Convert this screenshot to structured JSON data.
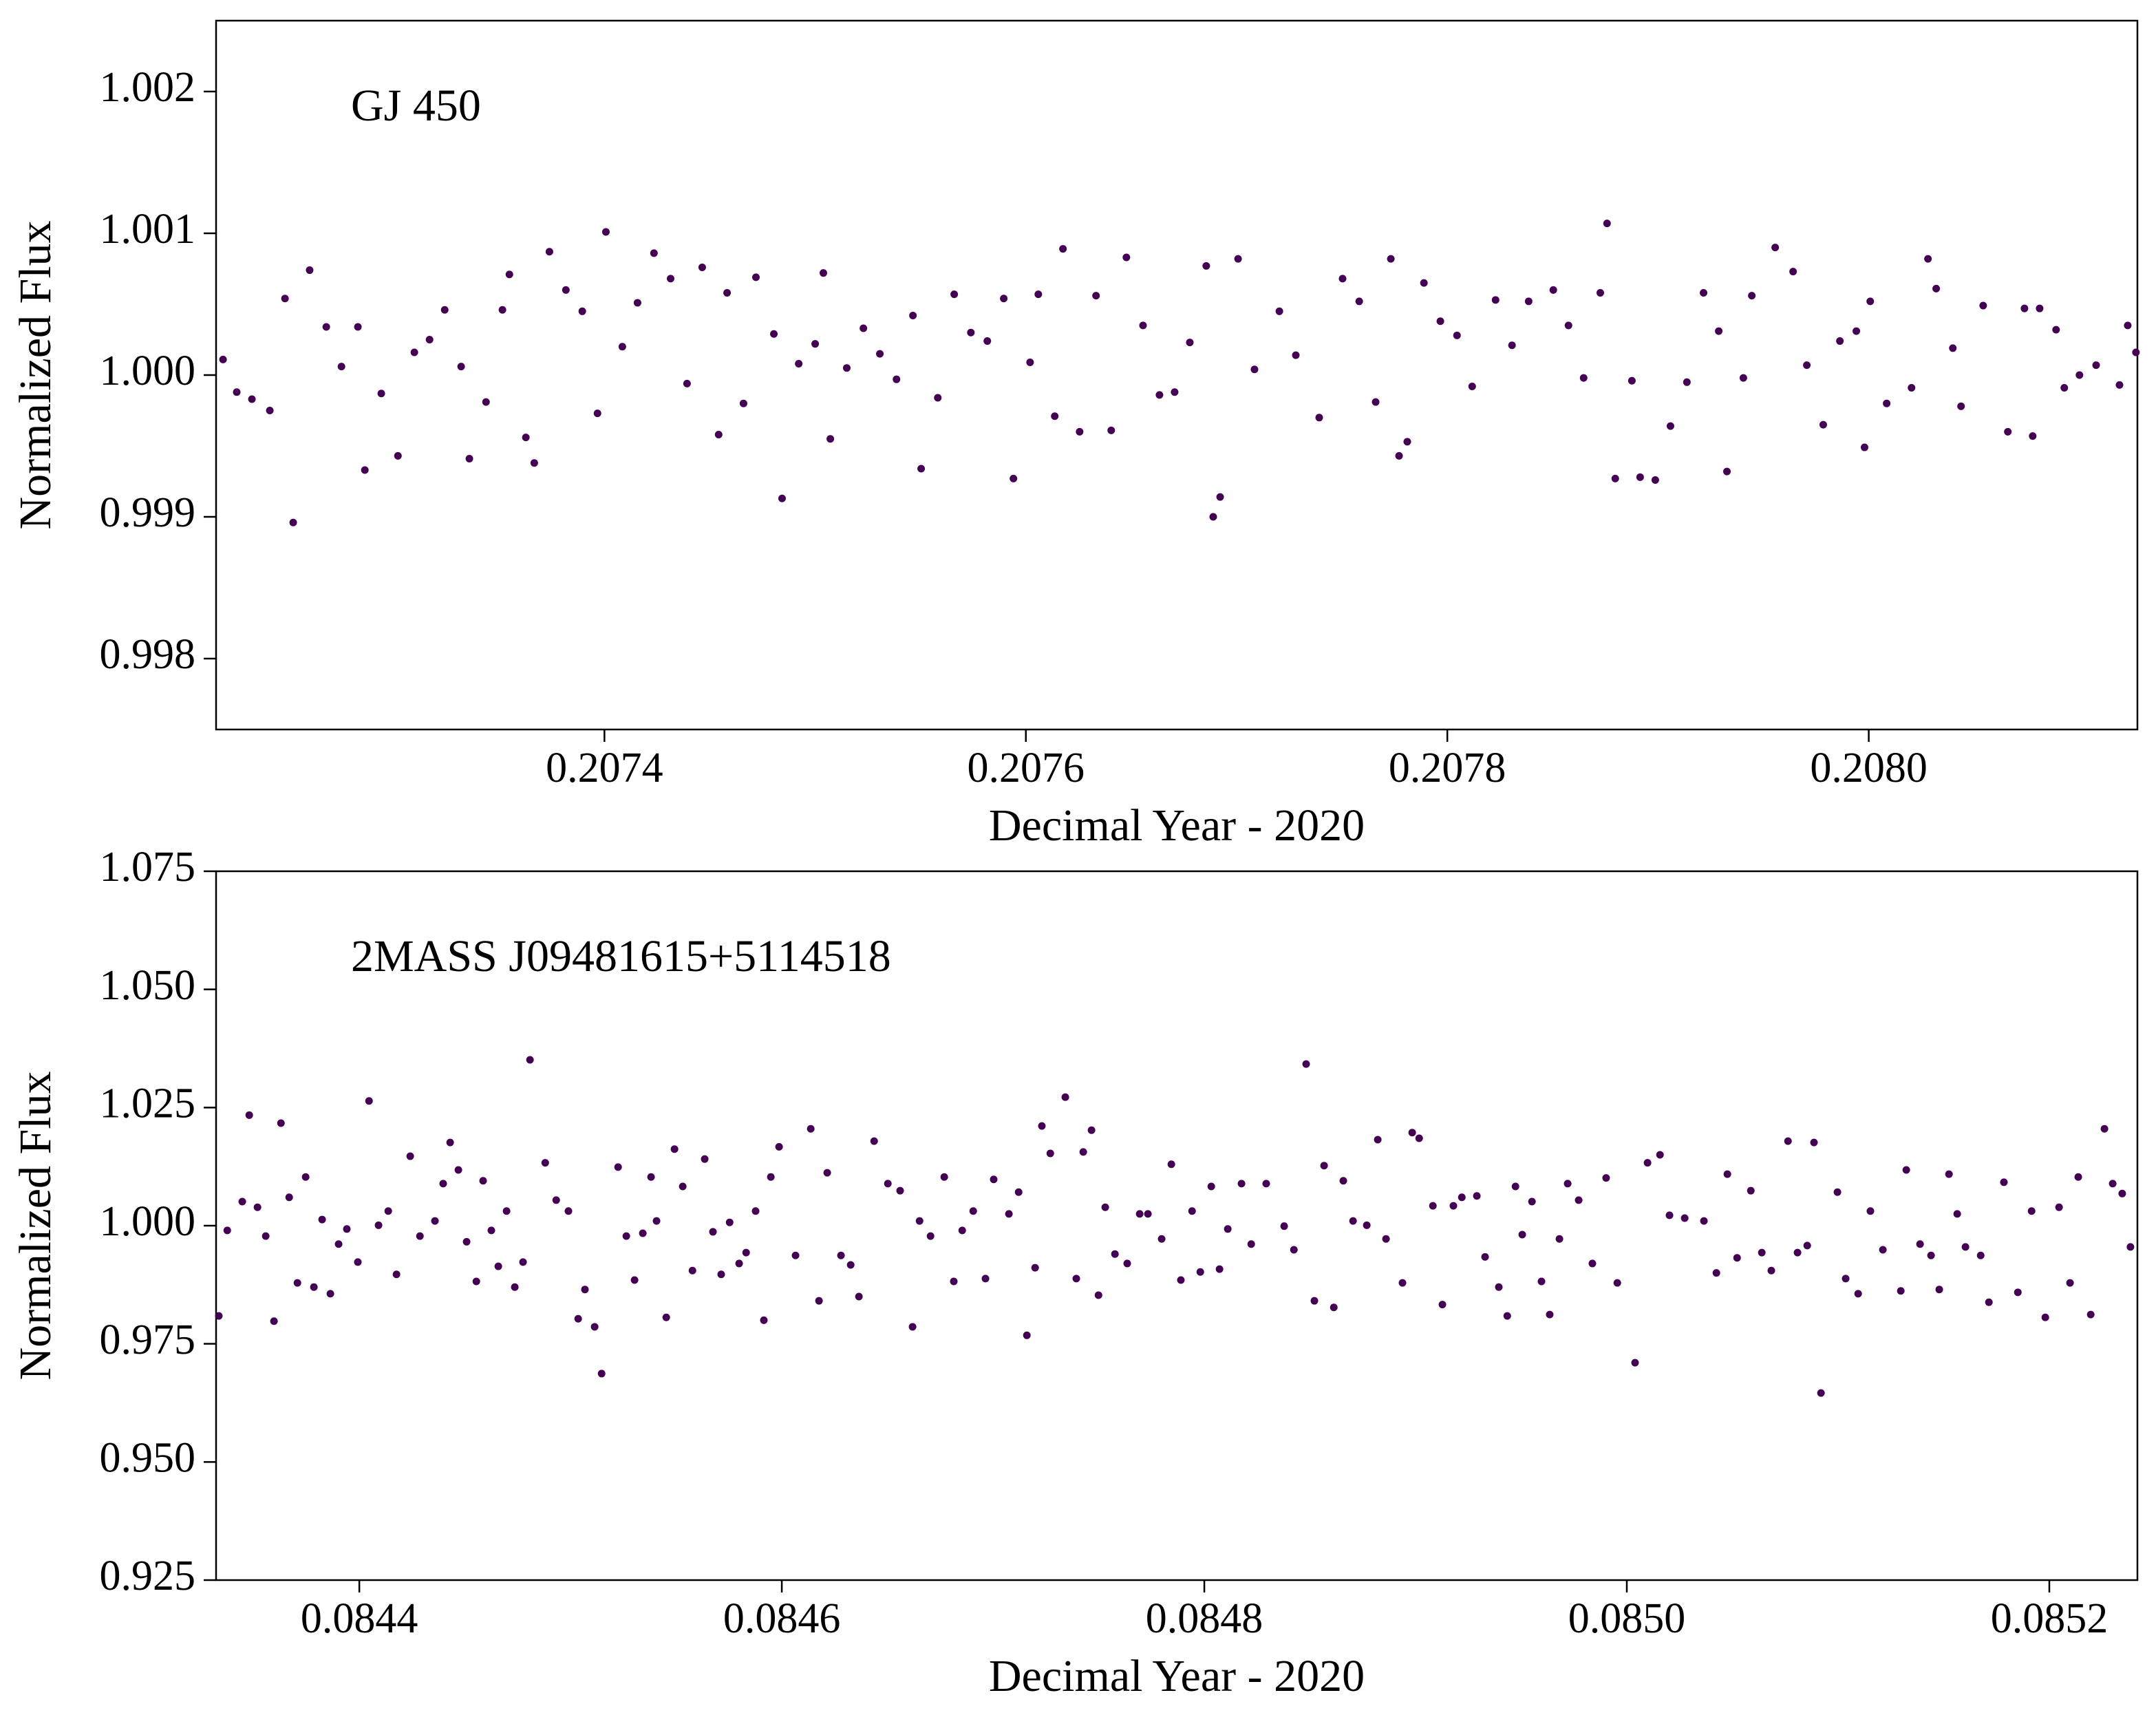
{
  "chart_data": [
    {
      "type": "scatter",
      "annotation": "GJ 450",
      "xlabel": "Decimal Year - 2020",
      "ylabel": "Normalized Flux",
      "color": "#440154",
      "xlim": [
        0.2072157,
        0.2081275
      ],
      "ylim": [
        0.9975,
        1.0025
      ],
      "xticks": [
        0.2074,
        0.2076,
        0.2078,
        {
          "value": 0.208,
          "label": "0.2080"
        }
      ],
      "yticks": [
        0.998,
        0.999,
        {
          "value": 1.0,
          "label": "1.000"
        },
        1.001,
        1.002
      ],
      "x": [
        0.207219,
        0.2072255,
        0.2072327,
        0.2072412,
        0.2072484,
        0.2072523,
        0.2072601,
        0.207268,
        0.2072752,
        0.207283,
        0.2072863,
        0.2072941,
        0.207302,
        0.2073098,
        0.207317,
        0.2073242,
        0.207332,
        0.2073359,
        0.2073438,
        0.2073516,
        0.2073549,
        0.2073627,
        0.2073667,
        0.2073739,
        0.2073817,
        0.2073895,
        0.2073967,
        0.2074007,
        0.2074085,
        0.2074157,
        0.2074235,
        0.2074314,
        0.2074392,
        0.2074464,
        0.2074542,
        0.2074582,
        0.207466,
        0.2074719,
        0.2074804,
        0.2074843,
        0.2074922,
        0.2075,
        0.2075039,
        0.2075072,
        0.207515,
        0.2075229,
        0.2075307,
        0.2075386,
        0.2075464,
        0.2075503,
        0.2075582,
        0.207566,
        0.2075739,
        0.2075817,
        0.2075895,
        0.2075941,
        0.207602,
        0.2076059,
        0.2076137,
        0.2076176,
        0.2076255,
        0.2076333,
        0.2076405,
        0.2076477,
        0.2076556,
        0.2076634,
        0.2076706,
        0.2076778,
        0.2076856,
        0.2076889,
        0.2076922,
        0.2077007,
        0.2077085,
        0.2077203,
        0.2077281,
        0.2077392,
        0.2077503,
        0.2077582,
        0.207766,
        0.2077732,
        0.2077771,
        0.207781,
        0.2077889,
        0.2077967,
        0.2078046,
        0.2078118,
        0.2078229,
        0.2078307,
        0.2078386,
        0.2078503,
        0.2078575,
        0.2078647,
        0.2078726,
        0.2078758,
        0.2078797,
        0.2078876,
        0.2078915,
        0.2078987,
        0.2079059,
        0.2079137,
        0.2079216,
        0.2079288,
        0.2079327,
        0.2079405,
        0.2079445,
        0.2079556,
        0.2079641,
        0.2079706,
        0.2079784,
        0.2079863,
        0.2079941,
        0.207998,
        0.2080007,
        0.2080085,
        0.2080203,
        0.2080281,
        0.208032,
        0.2080399,
        0.2080438,
        0.2080543,
        0.208066,
        0.2080739,
        0.2080778,
        0.2080811,
        0.2080889,
        0.2080928,
        0.2081,
        0.2081079,
        0.208119,
        0.2081229,
        0.2081268
      ],
      "values": [
        1.00011,
        0.99988,
        0.99983,
        0.99975,
        1.00054,
        0.99896,
        1.00074,
        1.00034,
        1.00006,
        1.00034,
        0.99933,
        0.99987,
        0.99943,
        1.00016,
        1.00025,
        1.00046,
        1.00006,
        0.99941,
        0.99981,
        1.00046,
        1.00071,
        0.99956,
        0.99938,
        1.00087,
        1.0006,
        1.00045,
        0.99973,
        1.00101,
        1.0002,
        1.00051,
        1.00086,
        1.00068,
        0.99994,
        1.00076,
        0.99958,
        1.00058,
        0.9998,
        1.00069,
        1.00029,
        0.99913,
        1.00008,
        1.00022,
        1.00072,
        0.99955,
        1.00005,
        1.00033,
        1.00015,
        0.99997,
        1.00042,
        0.99934,
        0.99984,
        1.00057,
        1.0003,
        1.00024,
        1.00054,
        0.99927,
        1.00009,
        1.00057,
        0.99971,
        1.00089,
        0.9996,
        1.00056,
        0.99961,
        1.00083,
        1.00035,
        0.99986,
        0.99988,
        1.00023,
        1.00077,
        0.999,
        0.99914,
        1.00082,
        1.00004,
        1.00045,
        1.00014,
        0.9997,
        1.00068,
        1.00052,
        0.99981,
        1.00082,
        0.99943,
        0.99953,
        1.00065,
        1.00038,
        1.00028,
        0.99992,
        1.00053,
        1.00021,
        1.00052,
        1.0006,
        1.00035,
        0.99998,
        1.00058,
        1.00107,
        0.99927,
        0.99996,
        0.99928,
        0.99926,
        0.99964,
        0.99995,
        1.00058,
        1.00031,
        0.99932,
        0.99998,
        1.00056,
        1.0009,
        1.00073,
        1.00007,
        0.99965,
        1.00024,
        1.00031,
        0.99949,
        1.00052,
        0.9998,
        0.99991,
        1.00082,
        1.00061,
        1.00019,
        0.99978,
        1.00049,
        0.9996,
        1.00047,
        0.99957,
        1.00047,
        1.00032,
        0.99991,
        1.0,
        1.00007,
        0.99993,
        1.00035,
        1.00016
      ]
    },
    {
      "type": "scatter",
      "annotation": "2MASS J09481615+5114518",
      "xlabel": "Decimal Year - 2020",
      "ylabel": "Normalized Flux",
      "color": "#440154",
      "xlim": [
        0.0843322,
        0.0852417
      ],
      "ylim": [
        0.925,
        1.075
      ],
      "xticks": [
        0.0844,
        0.0846,
        0.0848,
        {
          "value": 0.085,
          "label": "0.0850"
        },
        0.0852
      ],
      "yticks": [
        0.925,
        {
          "value": 0.95,
          "label": "0.950"
        },
        0.975,
        {
          "value": 1.0,
          "label": "1.000"
        },
        1.025,
        {
          "value": 1.05,
          "label": "1.050"
        },
        1.075
      ],
      "x": [
        0.0843335,
        0.0843375,
        0.0843446,
        0.0843479,
        0.0843518,
        0.0843557,
        0.0843596,
        0.0843629,
        0.0843668,
        0.0843707,
        0.0843746,
        0.0843785,
        0.0843824,
        0.0843863,
        0.0843902,
        0.0843941,
        0.0843993,
        0.0844046,
        0.0844091,
        0.0844137,
        0.0844176,
        0.0844241,
        0.0844287,
        0.0844358,
        0.0844397,
        0.084443,
        0.0844469,
        0.0844508,
        0.0844554,
        0.0844586,
        0.0844625,
        0.0844658,
        0.0844697,
        0.0844736,
        0.0844775,
        0.0844808,
        0.084488,
        0.0844932,
        0.084499,
        0.0845036,
        0.0845068,
        0.0845114,
        0.0845147,
        0.0845225,
        0.0845264,
        0.0845303,
        0.0845342,
        0.0845381,
        0.0845407,
        0.0845453,
        0.0845492,
        0.0845531,
        0.0845577,
        0.0845635,
        0.0845674,
        0.0845713,
        0.0845753,
        0.0845798,
        0.0845831,
        0.0845876,
        0.0845915,
        0.0845948,
        0.0845987,
        0.0846065,
        0.0846137,
        0.0846176,
        0.0846215,
        0.084628,
        0.0846326,
        0.0846365,
        0.0846437,
        0.0846502,
        0.084656,
        0.0846619,
        0.0846652,
        0.0846704,
        0.0846769,
        0.0846814,
        0.0846854,
        0.0846906,
        0.0846964,
        0.0847003,
        0.0847075,
        0.0847121,
        0.084716,
        0.0847199,
        0.0847231,
        0.0847271,
        0.0847342,
        0.0847394,
        0.0847427,
        0.0847466,
        0.0847499,
        0.0847531,
        0.0847577,
        0.0847635,
        0.0847694,
        0.0847733,
        0.0847798,
        0.0847844,
        0.0847889,
        0.0847942,
        0.0847981,
        0.0848033,
        0.0848072,
        0.0848111,
        0.0848176,
        0.0848222,
        0.0848293,
        0.0848378,
        0.0848424,
        0.0848482,
        0.0848521,
        0.0848567,
        0.0848613,
        0.0848658,
        0.0848704,
        0.0848769,
        0.0848821,
        0.084886,
        0.0848938,
        0.0848984,
        0.0849017,
        0.0849082,
        0.0849127,
        0.0849179,
        0.0849219,
        0.084929,
        0.0849329,
        0.0849394,
        0.0849434,
        0.0849473,
        0.0849505,
        0.0849551,
        0.0849596,
        0.0849635,
        0.0849681,
        0.084972,
        0.0849772,
        0.0849837,
        0.0849902,
        0.0849955,
        0.0850039,
        0.0850098,
        0.0850157,
        0.0850202,
        0.0850274,
        0.0850365,
        0.0850424,
        0.0850476,
        0.0850522,
        0.0850587,
        0.0850639,
        0.0850684,
        0.0850763,
        0.0850808,
        0.0850854,
        0.0850886,
        0.0850919,
        0.0850997,
        0.0851036,
        0.0851095,
        0.0851153,
        0.0851212,
        0.0851297,
        0.0851323,
        0.0851388,
        0.085144,
        0.0851479,
        0.0851525,
        0.0851564,
        0.0851603,
        0.0851675,
        0.0851714,
        0.0851785,
        0.0851851,
        0.0851916,
        0.0851981,
        0.0852046,
        0.0852098,
        0.0852137,
        0.0852196,
        0.0852261,
        0.08523,
        0.0852345,
        0.0852384
      ],
      "values": [
        0.9809,
        0.999,
        1.0051,
        1.0234,
        1.0039,
        0.9978,
        0.9798,
        1.0217,
        1.006,
        0.9879,
        1.0103,
        0.987,
        1.0013,
        0.9856,
        0.9961,
        0.9993,
        0.9923,
        1.0264,
        1.0001,
        1.0031,
        0.9897,
        1.0147,
        0.9978,
        1.001,
        1.0089,
        1.0176,
        1.0118,
        0.9966,
        0.9882,
        1.0095,
        0.999,
        0.9914,
        1.0031,
        0.987,
        0.9923,
        1.0351,
        1.0133,
        1.0054,
        1.0031,
        0.9803,
        0.9865,
        0.9786,
        0.9687,
        1.0124,
        0.9978,
        0.9885,
        0.9984,
        1.0103,
        1.001,
        0.9806,
        1.0162,
        1.0083,
        0.9905,
        1.0141,
        0.9987,
        0.9897,
        1.0007,
        0.992,
        0.9943,
        1.0031,
        0.98,
        1.0103,
        1.0167,
        0.9937,
        1.0205,
        0.9841,
        1.0112,
        0.9937,
        0.9917,
        0.985,
        1.0179,
        1.0089,
        1.0074,
        0.9786,
        1.001,
        0.9978,
        1.0103,
        0.9882,
        0.999,
        1.0031,
        0.9888,
        1.0098,
        1.0025,
        1.0071,
        0.9768,
        0.9911,
        1.0211,
        1.0153,
        1.0272,
        0.9888,
        1.0156,
        1.0202,
        0.9853,
        1.0039,
        0.994,
        0.992,
        1.0025,
        1.0025,
        0.9972,
        1.013,
        0.9885,
        1.0031,
        0.9902,
        1.0083,
        0.9908,
        0.9993,
        1.0089,
        0.9961,
        1.0089,
        0.9999,
        0.9949,
        1.0342,
        0.9841,
        1.0127,
        0.9827,
        1.0095,
        1.001,
        1.0001,
        1.0182,
        0.9972,
        0.9879,
        1.0197,
        1.0185,
        1.0042,
        0.9833,
        1.0042,
        1.006,
        1.0063,
        0.9934,
        0.987,
        0.9809,
        1.0083,
        0.9981,
        1.0051,
        0.9882,
        0.9812,
        0.9972,
        1.0089,
        1.0054,
        0.992,
        1.0101,
        0.9879,
        0.971,
        1.0133,
        1.015,
        1.0022,
        1.0016,
        1.001,
        0.99,
        1.0109,
        0.9932,
        1.0074,
        0.9943,
        0.9905,
        1.0179,
        0.9943,
        0.9958,
        1.0176,
        0.9646,
        1.0071,
        0.9888,
        0.9856,
        1.0031,
        0.9949,
        0.9862,
        1.0118,
        0.9961,
        0.9937,
        0.9865,
        1.0109,
        1.0025,
        0.9955,
        0.9937,
        0.9838,
        1.0092,
        0.9859,
        1.0031,
        0.9806,
        1.0039,
        0.9879,
        1.0103,
        0.9812,
        1.0205,
        1.0089,
        1.0068,
        0.9955
      ]
    }
  ]
}
